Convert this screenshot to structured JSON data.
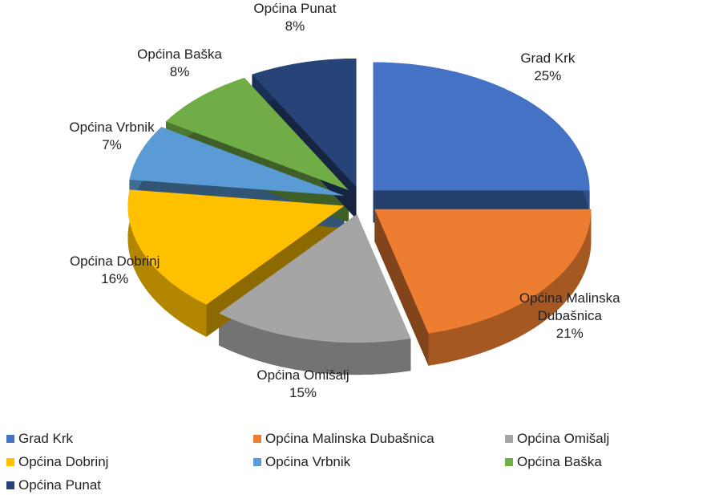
{
  "chart_data": {
    "type": "pie",
    "categories": [
      "Grad Krk",
      "Općina Malinska Dubašnica",
      "Općina Omišalj",
      "Općina Dobrinj",
      "Općina Vrbnik",
      "Općina Baška",
      "Općina Punat"
    ],
    "values": [
      25,
      21,
      15,
      16,
      7,
      8,
      8
    ],
    "value_labels": [
      "25%",
      "21%",
      "15%",
      "16%",
      "7%",
      "8%",
      "8%"
    ],
    "colors": [
      "#4472c4",
      "#ed7d31",
      "#a5a5a5",
      "#ffc000",
      "#5b9bd5",
      "#70ad47",
      "#264478"
    ],
    "legend": "bottom"
  }
}
